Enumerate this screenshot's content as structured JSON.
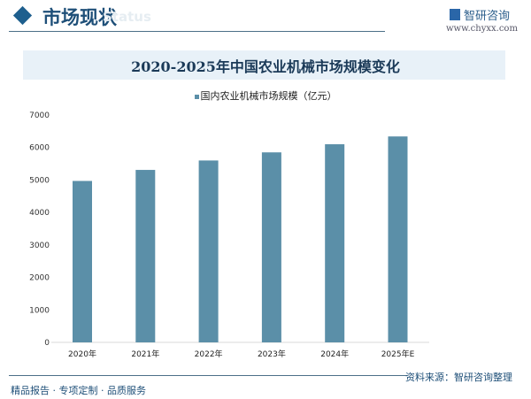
{
  "header": {
    "title": "市场现状",
    "subtitle": "Status",
    "brand": "智研咨询",
    "url": "www.chyxx.com"
  },
  "footer": {
    "tagline": "精品报告 · 专项定制 · 品质服务",
    "source": "资料来源：智研咨询整理"
  },
  "colors": {
    "bar": "#5b8fa8",
    "accent": "#1e5f8e"
  },
  "chart_data": {
    "type": "bar",
    "title": "2020-2025年中国农业机械市场规模变化",
    "categories": [
      "2020年",
      "2021年",
      "2022年",
      "2023年",
      "2024年",
      "2025年E"
    ],
    "series": [
      {
        "name": "国内农业机械市场规模（亿元）",
        "values": [
          4970,
          5310,
          5600,
          5850,
          6100,
          6340
        ]
      }
    ],
    "yticks": [
      0,
      1000,
      2000,
      3000,
      4000,
      5000,
      6000,
      7000
    ],
    "ylim": [
      0,
      7000
    ],
    "grid": false,
    "legend": "top"
  }
}
